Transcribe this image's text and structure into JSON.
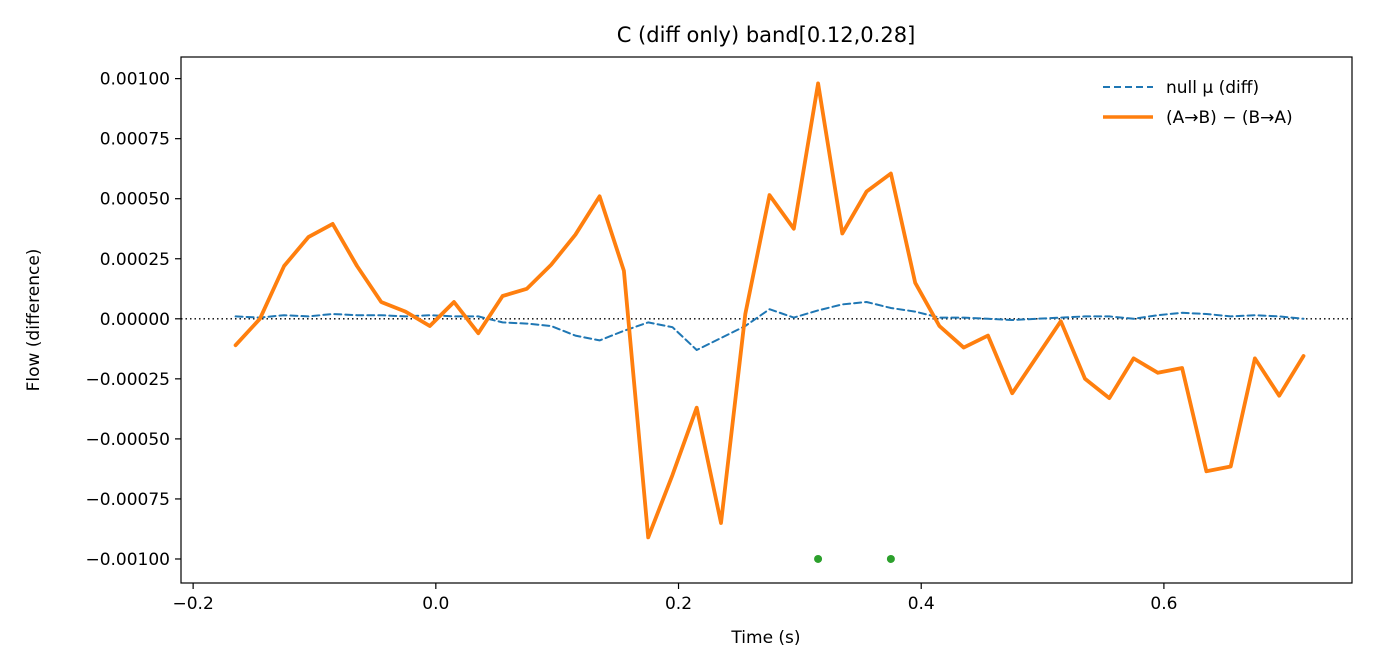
{
  "chart_data": {
    "type": "line",
    "title": "C (diff only)   band[0.12,0.28]",
    "xlabel": "Time (s)",
    "ylabel": "Flow (difference)",
    "xlim": [
      -0.21,
      0.755
    ],
    "ylim": [
      -0.0011,
      0.00109
    ],
    "xticks": [
      -0.2,
      0.0,
      0.2,
      0.4,
      0.6
    ],
    "xtick_labels": [
      "−0.2",
      "0.0",
      "0.2",
      "0.4",
      "0.6"
    ],
    "yticks": [
      0.001,
      0.00075,
      0.0005,
      0.00025,
      0.0,
      -0.00025,
      -0.0005,
      -0.00075,
      -0.001
    ],
    "ytick_labels": [
      "0.00100",
      "0.00075",
      "0.00050",
      "0.00025",
      "0.00000",
      "−0.00025",
      "−0.00050",
      "−0.00075",
      "−0.00100"
    ],
    "grid": false,
    "legend_position": "top-right",
    "x": [
      -0.165,
      -0.145,
      -0.125,
      -0.105,
      -0.085,
      -0.065,
      -0.045,
      -0.025,
      -0.005,
      0.015,
      0.035,
      0.055,
      0.075,
      0.095,
      0.115,
      0.135,
      0.155,
      0.175,
      0.195,
      0.215,
      0.235,
      0.255,
      0.275,
      0.295,
      0.315,
      0.335,
      0.355,
      0.375,
      0.395,
      0.415,
      0.435,
      0.455,
      0.475,
      0.495,
      0.515,
      0.535,
      0.555,
      0.575,
      0.595,
      0.615,
      0.635,
      0.655,
      0.675,
      0.695,
      0.715
    ],
    "series": [
      {
        "name": "null μ (diff)",
        "color": "#1f77b4",
        "style": "dashed",
        "values": [
          1e-05,
          5e-06,
          1.5e-05,
          1e-05,
          2e-05,
          1.5e-05,
          1.5e-05,
          1e-05,
          1.5e-05,
          1e-05,
          1e-05,
          -1.5e-05,
          -2e-05,
          -3e-05,
          -7e-05,
          -9e-05,
          -5e-05,
          -1.5e-05,
          -3.5e-05,
          -0.00013,
          -8e-05,
          -3e-05,
          4e-05,
          5e-06,
          3.5e-05,
          6e-05,
          7e-05,
          4.5e-05,
          3e-05,
          5e-06,
          5e-06,
          0.0,
          -5e-06,
          0.0,
          5e-06,
          1e-05,
          1e-05,
          0.0,
          1.5e-05,
          2.5e-05,
          2e-05,
          1e-05,
          1.5e-05,
          1e-05,
          0.0
        ]
      },
      {
        "name": "(A→B) − (B→A)",
        "color": "#ff7f0e",
        "style": "solid",
        "values": [
          -0.00011,
          0.0,
          0.00022,
          0.00034,
          0.000395,
          0.00022,
          7e-05,
          3e-05,
          -3e-05,
          7e-05,
          -6e-05,
          9.5e-05,
          0.000125,
          0.000225,
          0.00035,
          0.00051,
          0.0002,
          -0.00091,
          -0.00065,
          -0.00037,
          -0.00085,
          2e-05,
          0.000515,
          0.000375,
          0.00098,
          0.000355,
          0.00053,
          0.000605,
          0.00015,
          -3e-05,
          -0.00012,
          -7e-05,
          -0.00031,
          -0.00016,
          -1e-05,
          -0.00025,
          -0.00033,
          -0.000165,
          -0.000225,
          -0.000205,
          -0.000635,
          -0.000615,
          -0.000165,
          -0.00032,
          -0.000155
        ]
      }
    ],
    "markers": {
      "color": "#2ca02c",
      "x": [
        0.315,
        0.375
      ],
      "y": [
        -0.001,
        -0.001
      ]
    },
    "reference_line": {
      "y": 0.0,
      "style": "dotted",
      "color": "#000000"
    }
  }
}
